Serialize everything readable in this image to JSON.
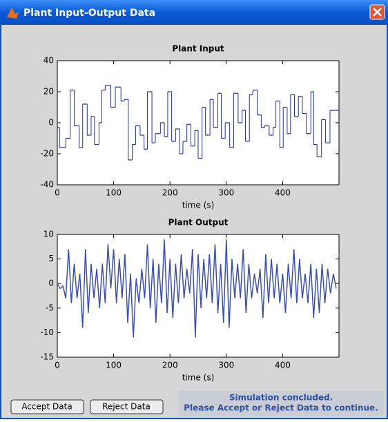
{
  "window": {
    "title": "Plant Input-Output Data"
  },
  "chart_data": [
    {
      "type": "step",
      "title": "Plant Input",
      "xlabel": "time (s)",
      "color": "#1f2f9a",
      "xlim": [
        0,
        500
      ],
      "xticks": [
        0,
        100,
        200,
        300,
        400
      ],
      "ylim": [
        -40,
        40
      ],
      "yticks": [
        40,
        20,
        0,
        -20,
        -40
      ],
      "x": [
        0,
        4,
        15,
        23,
        30,
        39,
        45,
        53,
        60,
        66,
        74,
        79,
        85,
        95,
        103,
        113,
        119,
        126,
        133,
        139,
        147,
        154,
        160,
        168,
        174,
        183,
        190,
        196,
        203,
        210,
        217,
        223,
        230,
        237,
        244,
        250,
        257,
        263,
        271,
        277,
        285,
        291,
        298,
        306,
        313,
        321,
        328,
        334,
        341,
        347,
        355,
        362,
        368,
        376,
        383,
        388,
        395,
        401,
        408,
        414,
        421,
        428,
        435,
        442,
        450,
        455,
        461,
        469,
        476,
        484
      ],
      "values": [
        -3,
        -16,
        -10,
        21,
        -2,
        -16,
        12,
        -8,
        4,
        -14,
        0,
        21,
        24,
        10,
        23,
        14,
        15,
        -24,
        -14,
        -2,
        -8,
        -17,
        20,
        -13,
        -7,
        0,
        -9,
        20,
        -12,
        -4,
        -20,
        -12,
        -1,
        -15,
        -5,
        -23,
        10,
        -8,
        15,
        -3,
        19,
        -10,
        0,
        -16,
        19,
        0,
        8,
        -12,
        18,
        21,
        5,
        -3,
        -2,
        -8,
        -3,
        14,
        -16,
        10,
        -7,
        18,
        4,
        17,
        6,
        -7,
        20,
        -14,
        -22,
        2,
        -13,
        8
      ]
    },
    {
      "type": "line",
      "title": "Plant Output",
      "xlabel": "time (s)",
      "color": "#3b50aa",
      "xlim": [
        0,
        500
      ],
      "xticks": [
        0,
        100,
        200,
        300,
        400
      ],
      "ylim": [
        -15,
        10
      ],
      "yticks": [
        10,
        5,
        0,
        -5,
        -10,
        -15
      ],
      "x": [
        0,
        5,
        10,
        15,
        20,
        25,
        30,
        35,
        40,
        45,
        50,
        55,
        60,
        65,
        70,
        75,
        80,
        85,
        90,
        95,
        100,
        105,
        110,
        115,
        120,
        125,
        130,
        135,
        140,
        145,
        150,
        155,
        160,
        165,
        170,
        175,
        180,
        185,
        190,
        195,
        200,
        205,
        210,
        215,
        220,
        225,
        230,
        235,
        240,
        245,
        250,
        255,
        260,
        265,
        270,
        275,
        280,
        285,
        290,
        295,
        300,
        305,
        310,
        315,
        320,
        325,
        330,
        335,
        340,
        345,
        350,
        355,
        360,
        365,
        370,
        375,
        380,
        385,
        390,
        395,
        400,
        405,
        410,
        415,
        420,
        425,
        430,
        435,
        440,
        445,
        450,
        455,
        460,
        465,
        470,
        475,
        480,
        485,
        490,
        495
      ],
      "values": [
        0,
        -1,
        -0.5,
        -3,
        7,
        -4,
        4,
        -3,
        2,
        -9,
        7,
        -6,
        4,
        -3,
        3,
        -5,
        4,
        -4,
        8,
        -1,
        7,
        -4,
        5,
        -3,
        6,
        -8,
        2,
        -11,
        1,
        -4,
        3,
        -3,
        8,
        -5,
        5,
        -8,
        4,
        -4,
        9,
        -6,
        5,
        -7,
        4,
        -4,
        6,
        -3,
        3,
        -2,
        7,
        -11,
        6,
        -5,
        5,
        -3,
        6,
        -4,
        8,
        -6,
        4,
        -8,
        9,
        -9,
        5,
        -3,
        4,
        -3,
        7,
        -6,
        4,
        -3,
        2,
        -2,
        3,
        -7,
        6,
        -4,
        5,
        -3,
        4,
        -4,
        2,
        -6,
        4,
        -3,
        7,
        -4,
        5,
        -3,
        2,
        -4,
        4,
        -7,
        3,
        -6,
        4,
        -4,
        3,
        -2,
        2,
        -1
      ]
    }
  ],
  "buttons": [
    "Accept Data",
    "Reject Data"
  ],
  "status": [
    "Simulation concluded.",
    "Please Accept or Reject Data to continue."
  ]
}
